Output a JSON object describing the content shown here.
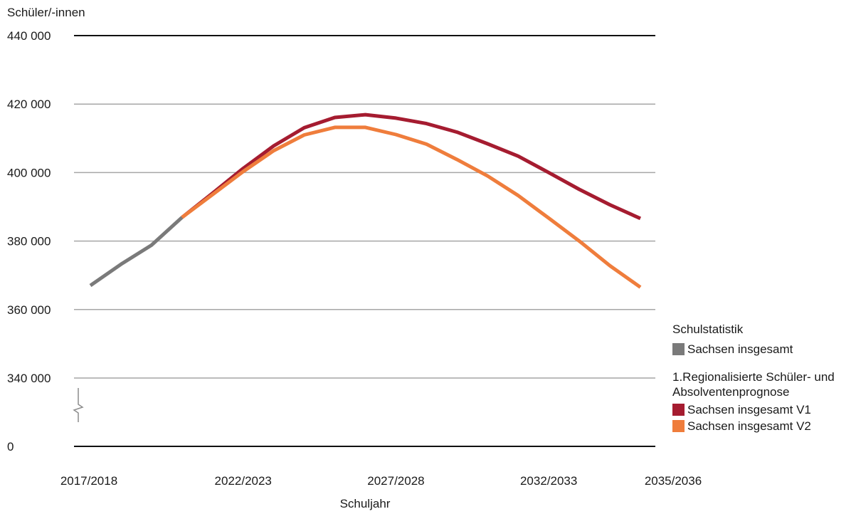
{
  "chart_data": {
    "type": "line",
    "ylabel": "Schüler/-innen",
    "xlabel": "Schuljahr",
    "y_ticks": [
      "440 000",
      "420 000",
      "400 000",
      "380 000",
      "360 000",
      "340 000",
      "0"
    ],
    "y_tick_values": [
      440000,
      420000,
      400000,
      380000,
      360000,
      340000,
      0
    ],
    "y_axis_break": "between 340 000 and 0",
    "ylim": [
      340000,
      440000
    ],
    "x_tick_labels": [
      "2017/2018",
      "2022/2023",
      "2027/2028",
      "2032/2033",
      "2035/2036"
    ],
    "x": [
      "2017/2018",
      "2018/2019",
      "2019/2020",
      "2020/2021",
      "2021/2022",
      "2022/2023",
      "2023/2024",
      "2024/2025",
      "2025/2026",
      "2026/2027",
      "2027/2028",
      "2028/2029",
      "2029/2030",
      "2030/2031",
      "2031/2032",
      "2032/2033",
      "2033/2034",
      "2034/2035",
      "2035/2036"
    ],
    "series": [
      {
        "name": "Sachsen insgesamt",
        "group": "Schulstatistik",
        "color": "#7a7a7a",
        "values": [
          367000,
          373200,
          378800,
          386900,
          null,
          null,
          null,
          null,
          null,
          null,
          null,
          null,
          null,
          null,
          null,
          null,
          null,
          null,
          null
        ]
      },
      {
        "name": "Sachsen insgesamt V1",
        "group": "1.Regionalisierte Schüler- und Absolventenprognose",
        "color": "#a51c30",
        "values": [
          null,
          null,
          null,
          386900,
          394000,
          401200,
          407800,
          413100,
          416100,
          416900,
          415900,
          414300,
          411800,
          408400,
          404800,
          400000,
          395100,
          390600,
          386600
        ]
      },
      {
        "name": "Sachsen insgesamt V2",
        "group": "1.Regionalisierte Schüler- und Absolventenprognose",
        "color": "#ef7d3c",
        "values": [
          null,
          null,
          null,
          386900,
          393600,
          400300,
          406400,
          411000,
          413200,
          413200,
          411100,
          408300,
          403800,
          399000,
          393300,
          386700,
          380000,
          372800,
          366500
        ]
      }
    ],
    "grid": true
  },
  "legend": {
    "group1_title": "Schulstatistik",
    "group1_item": "Sachsen insgesamt",
    "group2_title": "1.Regionalisierte Schüler- und Absolventenprognose",
    "group2_items": [
      "Sachsen insgesamt V1",
      "Sachsen insgesamt V2"
    ],
    "colors": {
      "gray": "#7a7a7a",
      "red": "#a51c30",
      "orange": "#ef7d3c"
    }
  }
}
